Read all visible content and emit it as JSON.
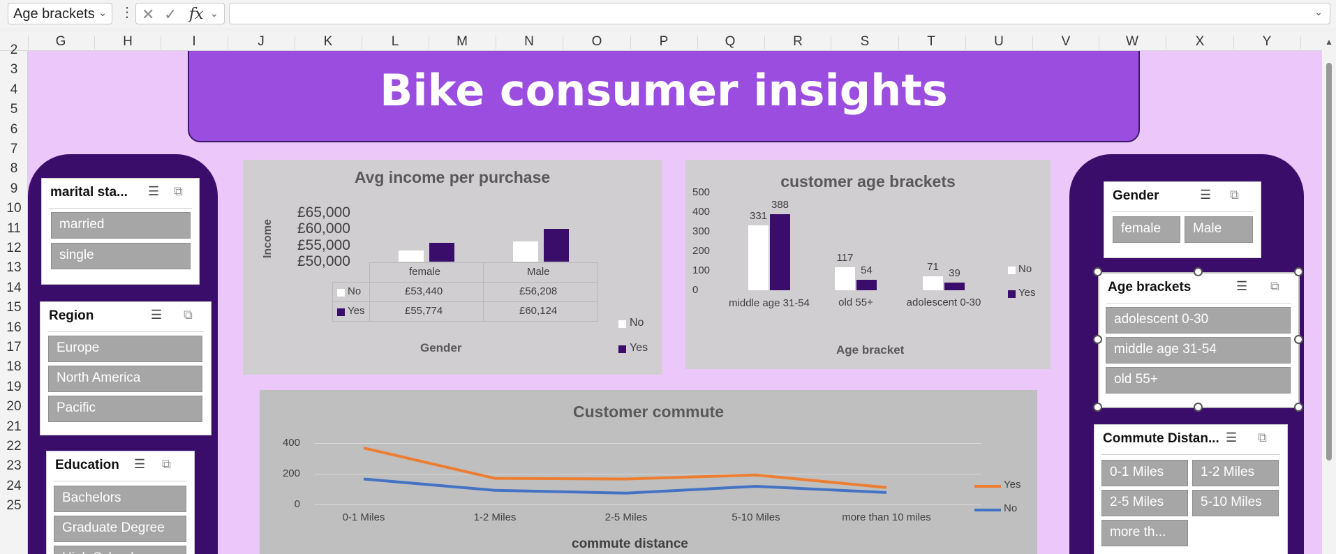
{
  "formula_bar": {
    "name_box": "Age brackets",
    "fx": "fx",
    "formula": ""
  },
  "columns": [
    "G",
    "H",
    "I",
    "J",
    "K",
    "L",
    "M",
    "N",
    "O",
    "P",
    "Q",
    "R",
    "S",
    "T",
    "U",
    "V",
    "W",
    "X",
    "Y"
  ],
  "rows": [
    "2",
    "3",
    "4",
    "5",
    "6",
    "7",
    "8",
    "9",
    "10",
    "11",
    "12",
    "13",
    "14",
    "15",
    "16",
    "17",
    "18",
    "19",
    "20",
    "21",
    "22",
    "23",
    "24",
    "25"
  ],
  "title": "Bike consumer insights",
  "slicers": {
    "marital": {
      "title": "marital sta...",
      "items": [
        "married",
        "single"
      ]
    },
    "region": {
      "title": "Region",
      "items": [
        "Europe",
        "North America",
        "Pacific"
      ]
    },
    "education": {
      "title": "Education",
      "items": [
        "Bachelors",
        "Graduate Degree",
        "High School"
      ]
    },
    "gender": {
      "title": "Gender",
      "items": [
        "female",
        "Male"
      ]
    },
    "age": {
      "title": "Age brackets",
      "items": [
        "adolescent 0-30",
        "middle age 31-54",
        "old 55+"
      ]
    },
    "commute": {
      "title": "Commute Distan...",
      "items": [
        "0-1 Miles",
        "1-2 Miles",
        "2-5 Miles",
        "5-10 Miles",
        "more th..."
      ]
    }
  },
  "chart_data": [
    {
      "type": "bar",
      "title": "Avg income per purchase",
      "ylabel": "Income",
      "xlabel": "Gender",
      "categories": [
        "female",
        "Male"
      ],
      "y_ticks": [
        "£65,000",
        "£60,000",
        "£55,000",
        "£50,000"
      ],
      "ylim": [
        50000,
        65000
      ],
      "series": [
        {
          "name": "No",
          "values": [
            53440,
            56208
          ],
          "labels": [
            "£53,440",
            "£56,208"
          ],
          "color": "#ffffff"
        },
        {
          "name": "Yes",
          "values": [
            55774,
            60124
          ],
          "labels": [
            "£55,774",
            "£60,124"
          ],
          "color": "#3b0d6b"
        }
      ]
    },
    {
      "type": "bar",
      "title": "customer age brackets",
      "xlabel": "Age bracket",
      "categories": [
        "middle age 31-54",
        "old 55+",
        "adolescent 0-30"
      ],
      "y_ticks": [
        "500",
        "400",
        "300",
        "200",
        "100",
        "0"
      ],
      "ylim": [
        0,
        500
      ],
      "series": [
        {
          "name": "No",
          "values": [
            331,
            117,
            71
          ],
          "color": "#ffffff"
        },
        {
          "name": "Yes",
          "values": [
            388,
            54,
            39
          ],
          "color": "#3b0d6b"
        }
      ]
    },
    {
      "type": "line",
      "title": "Customer commute",
      "xlabel": "commute distance",
      "categories": [
        "0-1 Miles",
        "1-2 Miles",
        "2-5 Miles",
        "5-10 Miles",
        "more than 10 miles"
      ],
      "y_ticks": [
        "400",
        "200",
        "0"
      ],
      "ylim": [
        0,
        400
      ],
      "series": [
        {
          "name": "Yes",
          "values": [
            368,
            170,
            166,
            192,
            110
          ],
          "color": "#ed7d31"
        },
        {
          "name": "No",
          "values": [
            166,
            92,
            74,
            118,
            78
          ],
          "color": "#4472c4"
        }
      ]
    }
  ]
}
